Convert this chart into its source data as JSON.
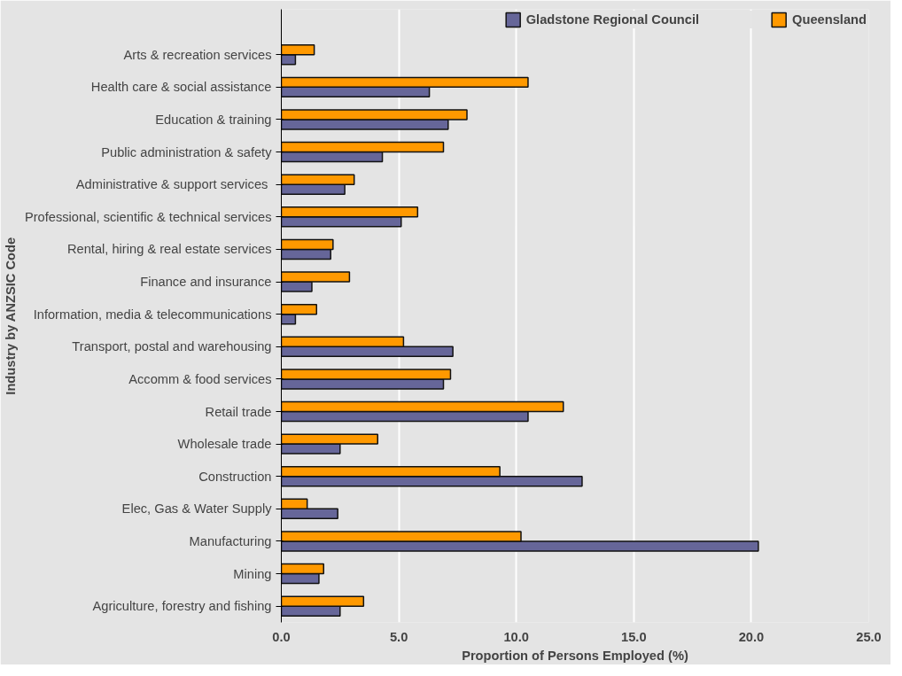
{
  "chart_data": {
    "type": "bar",
    "orientation": "horizontal",
    "categories": [
      "Arts & recreation services",
      "Health care & social assistance",
      "Education & training",
      "Public administration & safety",
      "Administrative & support  services",
      "Professional, scientific & technical services",
      "Rental, hiring & real estate services",
      "Finance and insurance",
      "Information, media & telecommunications",
      "Transport, postal and warehousing",
      "Accomm & food services",
      "Retail trade",
      "Wholesale trade",
      "Construction",
      "Elec, Gas & Water Supply",
      "Manufacturing",
      "Mining",
      "Agriculture, forestry and fishing"
    ],
    "series": [
      {
        "name": "Gladstone Regional Council",
        "color": "#666699",
        "values": [
          0.6,
          6.3,
          7.1,
          4.3,
          2.7,
          5.1,
          2.1,
          1.3,
          0.6,
          7.3,
          6.9,
          10.5,
          2.5,
          12.8,
          2.4,
          20.3,
          1.6,
          2.5
        ]
      },
      {
        "name": "Queensland",
        "color": "#ff9900",
        "values": [
          1.4,
          10.5,
          7.9,
          6.9,
          3.1,
          5.8,
          2.2,
          2.9,
          1.5,
          5.2,
          7.2,
          12.0,
          4.1,
          9.3,
          1.1,
          10.2,
          1.8,
          3.5
        ]
      }
    ],
    "xlim": [
      0,
      25
    ],
    "xticks": [
      {
        "value": 0,
        "label": "0.0"
      },
      {
        "value": 5,
        "label": "5.0"
      },
      {
        "value": 10,
        "label": "10.0"
      },
      {
        "value": 15,
        "label": "15.0"
      },
      {
        "value": 20,
        "label": "20.0"
      },
      {
        "value": 25,
        "label": "25.0"
      }
    ],
    "xlabel": "Proportion of Persons Employed (%)",
    "ylabel": "Industry by ANZSIC Code",
    "grid": "x",
    "legend": "top right"
  }
}
